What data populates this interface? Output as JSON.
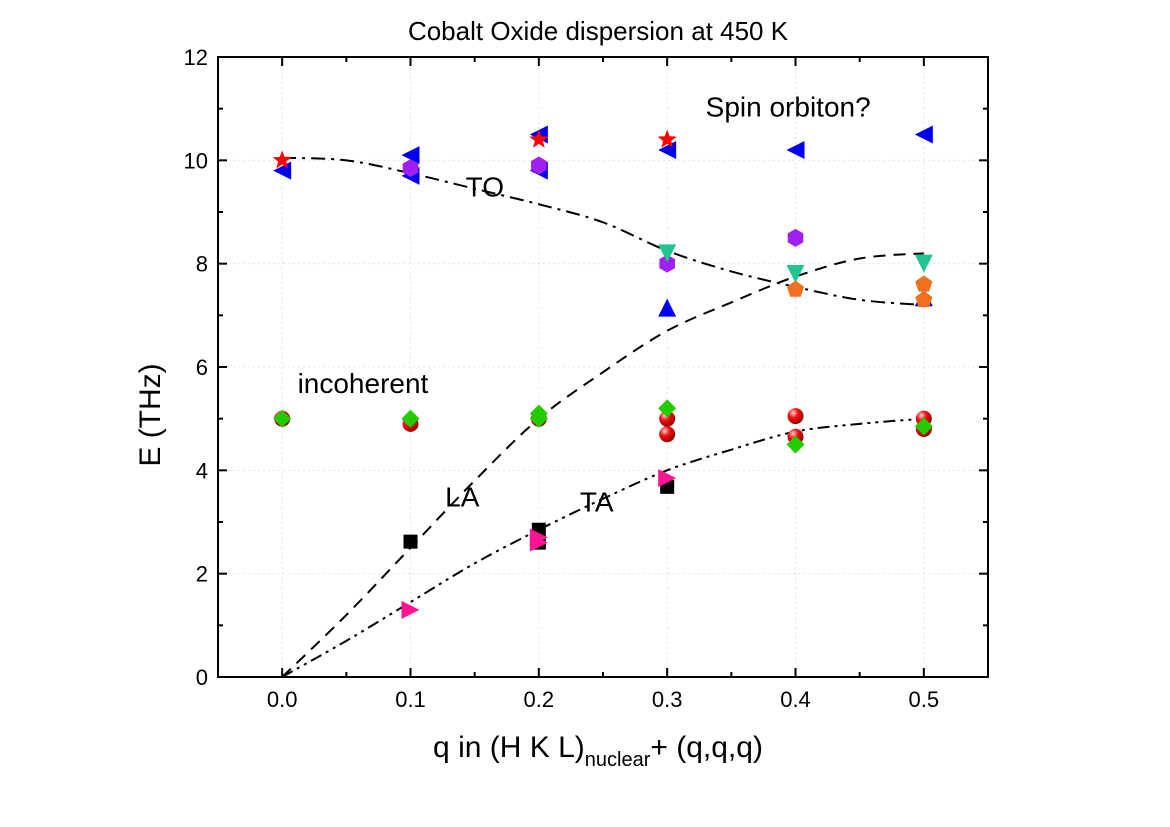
{
  "chart_data": {
    "type": "scatter",
    "title": "Cobalt Oxide dispersion at 450 K",
    "ylabel": "E (THz)",
    "xlabel": {
      "prefix": "q in (H K L)",
      "subscript": "nuclear",
      "suffix": "+ (q,q,q)"
    },
    "xlim": [
      -0.05,
      0.55
    ],
    "ylim": [
      0,
      12
    ],
    "xticks": [
      {
        "value": 0.0,
        "label": "0.0"
      },
      {
        "value": 0.1,
        "label": "0.1"
      },
      {
        "value": 0.2,
        "label": "0.2"
      },
      {
        "value": 0.3,
        "label": "0.3"
      },
      {
        "value": 0.4,
        "label": "0.4"
      },
      {
        "value": 0.5,
        "label": "0.5"
      }
    ],
    "yticks": [
      {
        "value": 0,
        "label": "0"
      },
      {
        "value": 2,
        "label": "2"
      },
      {
        "value": 4,
        "label": "4"
      },
      {
        "value": 6,
        "label": "6"
      },
      {
        "value": 8,
        "label": "8"
      },
      {
        "value": 10,
        "label": "10"
      },
      {
        "value": 12,
        "label": "12"
      }
    ],
    "grid": true,
    "curves": [
      {
        "name": "TO",
        "dash": "dashdot",
        "points": [
          [
            0.0,
            10.05
          ],
          [
            0.05,
            10.0
          ],
          [
            0.1,
            9.75
          ],
          [
            0.15,
            9.45
          ],
          [
            0.2,
            9.15
          ],
          [
            0.25,
            8.8
          ],
          [
            0.3,
            8.25
          ],
          [
            0.35,
            7.85
          ],
          [
            0.4,
            7.55
          ],
          [
            0.45,
            7.3
          ],
          [
            0.5,
            7.2
          ]
        ]
      },
      {
        "name": "LA",
        "dash": "dash",
        "points": [
          [
            0.0,
            0.0
          ],
          [
            0.05,
            1.2
          ],
          [
            0.1,
            2.5
          ],
          [
            0.15,
            3.8
          ],
          [
            0.2,
            5.0
          ],
          [
            0.25,
            5.9
          ],
          [
            0.3,
            6.7
          ],
          [
            0.35,
            7.25
          ],
          [
            0.4,
            7.75
          ],
          [
            0.45,
            8.1
          ],
          [
            0.5,
            8.2
          ]
        ]
      },
      {
        "name": "TA",
        "dash": "dashdotdot",
        "points": [
          [
            0.0,
            0.0
          ],
          [
            0.05,
            0.7
          ],
          [
            0.1,
            1.45
          ],
          [
            0.15,
            2.2
          ],
          [
            0.2,
            2.85
          ],
          [
            0.25,
            3.45
          ],
          [
            0.3,
            4.0
          ],
          [
            0.35,
            4.4
          ],
          [
            0.4,
            4.75
          ],
          [
            0.45,
            4.9
          ],
          [
            0.5,
            5.0
          ]
        ]
      }
    ],
    "series": [
      {
        "name": "left-triangle",
        "marker": "triangle-left",
        "color": "#0000ee",
        "points": [
          [
            0.0,
            9.8
          ],
          [
            0.1,
            10.1
          ],
          [
            0.1,
            9.7
          ],
          [
            0.2,
            10.5
          ],
          [
            0.2,
            9.8
          ],
          [
            0.3,
            10.2
          ],
          [
            0.4,
            10.2
          ],
          [
            0.5,
            10.5
          ]
        ]
      },
      {
        "name": "up-triangle",
        "marker": "triangle-up",
        "color": "#0000ee",
        "points": [
          [
            0.3,
            7.15
          ],
          [
            0.5,
            7.35
          ]
        ]
      },
      {
        "name": "star",
        "marker": "star",
        "color": "#ff0000",
        "points": [
          [
            0.0,
            10.0
          ],
          [
            0.2,
            10.4
          ],
          [
            0.3,
            10.4
          ]
        ]
      },
      {
        "name": "hexagon",
        "marker": "hexagon",
        "color": "#a020f0",
        "points": [
          [
            0.1,
            9.85
          ],
          [
            0.2,
            9.9
          ],
          [
            0.3,
            8.0
          ],
          [
            0.4,
            8.5
          ]
        ]
      },
      {
        "name": "down-triangle",
        "marker": "triangle-down",
        "color": "#22c493",
        "points": [
          [
            0.3,
            8.2
          ],
          [
            0.4,
            7.8
          ],
          [
            0.5,
            8.0
          ]
        ]
      },
      {
        "name": "pentagon",
        "marker": "pentagon",
        "color": "#f07020",
        "points": [
          [
            0.4,
            7.5
          ],
          [
            0.5,
            7.6
          ],
          [
            0.5,
            7.3
          ]
        ]
      },
      {
        "name": "sphere",
        "marker": "circle",
        "color": "#e00000",
        "points": [
          [
            0.0,
            5.0
          ],
          [
            0.1,
            4.9
          ],
          [
            0.2,
            5.0
          ],
          [
            0.3,
            4.7
          ],
          [
            0.3,
            5.0
          ],
          [
            0.4,
            4.65
          ],
          [
            0.4,
            5.05
          ],
          [
            0.5,
            4.8
          ],
          [
            0.5,
            5.0
          ]
        ]
      },
      {
        "name": "diamond",
        "marker": "diamond",
        "color": "#22cc00",
        "points": [
          [
            0.0,
            5.0
          ],
          [
            0.1,
            5.0
          ],
          [
            0.2,
            5.0
          ],
          [
            0.2,
            5.1
          ],
          [
            0.3,
            5.2
          ],
          [
            0.4,
            4.5
          ],
          [
            0.5,
            4.85
          ]
        ]
      },
      {
        "name": "square",
        "marker": "square",
        "color": "#000000",
        "points": [
          [
            0.1,
            2.62
          ],
          [
            0.2,
            2.85
          ],
          [
            0.2,
            2.6
          ],
          [
            0.3,
            3.68
          ]
        ]
      },
      {
        "name": "right-triangle",
        "marker": "triangle-right",
        "color": "#ff1493",
        "points": [
          [
            0.1,
            1.3
          ],
          [
            0.2,
            2.7
          ],
          [
            0.2,
            2.6
          ],
          [
            0.3,
            3.85
          ]
        ]
      }
    ],
    "annotations": [
      {
        "text": "Spin orbiton?",
        "x": 0.33,
        "y": 10.85
      },
      {
        "text": "TO",
        "x": 0.143,
        "y": 9.3
      },
      {
        "text": "incoherent",
        "x": 0.012,
        "y": 5.5
      },
      {
        "text": "LA",
        "x": 0.127,
        "y": 3.3
      },
      {
        "text": "TA",
        "x": 0.232,
        "y": 3.2
      }
    ]
  }
}
